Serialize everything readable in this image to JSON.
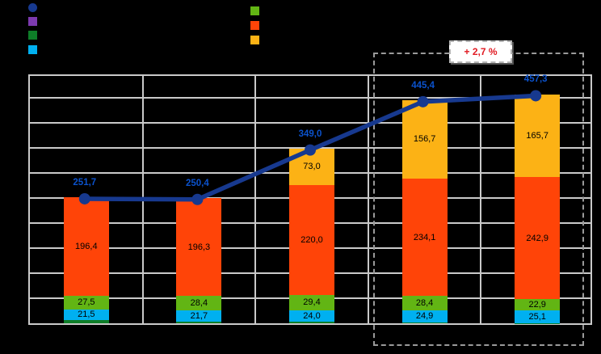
{
  "chart_data": {
    "type": "bar",
    "subtype": "stacked-bar-with-total-line",
    "n_categories": 5,
    "categories": [
      "",
      "",
      "",
      "",
      ""
    ],
    "ylim": [
      0,
      500
    ],
    "gridline_step": 50,
    "grid": "on",
    "background": "#000000",
    "gridline_color": "#c9c9c9",
    "series": [
      {
        "name": "bottom-darkgreen-segment",
        "color": "#0e7d28",
        "values": [
          6.3,
          4.0,
          2.6,
          1.3,
          0.7
        ],
        "labels": [
          "",
          "",
          "",
          "",
          ""
        ],
        "note": "thin unlabeled segment at bar base, values estimated from totals"
      },
      {
        "name": "cyan-segment",
        "color": "#00b0f0",
        "values": [
          21.5,
          21.7,
          24.0,
          24.9,
          25.1
        ],
        "labels": [
          "21,5",
          "21,7",
          "24,0",
          "24,9",
          "25,1"
        ]
      },
      {
        "name": "green-segment",
        "color": "#62b514",
        "values": [
          27.5,
          28.4,
          29.4,
          28.4,
          22.9
        ],
        "labels": [
          "27,5",
          "28,4",
          "29,4",
          "28,4",
          "22,9"
        ]
      },
      {
        "name": "orange-segment",
        "color": "#ff4408",
        "values": [
          196.4,
          196.3,
          220.0,
          234.1,
          242.9
        ],
        "labels": [
          "196,4",
          "196,3",
          "220,0",
          "234,1",
          "242,9"
        ]
      },
      {
        "name": "yellow-segment",
        "color": "#fcb215",
        "values": [
          0,
          0,
          73.0,
          156.7,
          165.7
        ],
        "labels": [
          "",
          "",
          "73,0",
          "156,7",
          "165,7"
        ]
      }
    ],
    "line": {
      "name": "total-line",
      "color": "#17398f",
      "label_color": "#0b52cc",
      "values": [
        251.7,
        250.4,
        349.0,
        445.4,
        457.3
      ],
      "labels": [
        "251,7",
        "250,4",
        "349,0",
        "445,4",
        "457,3"
      ]
    },
    "legend_position": "top"
  },
  "legend": {
    "left_markers": [
      {
        "shape": "circle",
        "color": "#17398f",
        "series": "total-line"
      },
      {
        "shape": "square",
        "color": "#7d3ab0",
        "series": "purple"
      },
      {
        "shape": "square",
        "color": "#0e7d28",
        "series": "dark-green"
      },
      {
        "shape": "square",
        "color": "#00b0f0",
        "series": "cyan"
      }
    ],
    "right_markers": [
      {
        "shape": "square",
        "color": "#62b514",
        "series": "green"
      },
      {
        "shape": "square",
        "color": "#ff4408",
        "series": "orange"
      },
      {
        "shape": "square",
        "color": "#fcb215",
        "series": "yellow"
      }
    ]
  },
  "annotation": {
    "text": "+ 2,7 %",
    "color": "#e11a22",
    "box": "dashed rectangle around last two bars"
  }
}
